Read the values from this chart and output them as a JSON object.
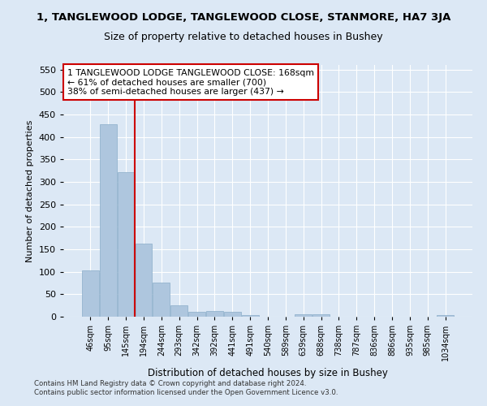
{
  "title": "1, TANGLEWOOD LODGE, TANGLEWOOD CLOSE, STANMORE, HA7 3JA",
  "subtitle": "Size of property relative to detached houses in Bushey",
  "xlabel": "Distribution of detached houses by size in Bushey",
  "ylabel": "Number of detached properties",
  "footer_line1": "Contains HM Land Registry data © Crown copyright and database right 2024.",
  "footer_line2": "Contains public sector information licensed under the Open Government Licence v3.0.",
  "categories": [
    "46sqm",
    "95sqm",
    "145sqm",
    "194sqm",
    "244sqm",
    "293sqm",
    "342sqm",
    "392sqm",
    "441sqm",
    "491sqm",
    "540sqm",
    "589sqm",
    "639sqm",
    "688sqm",
    "738sqm",
    "787sqm",
    "836sqm",
    "886sqm",
    "935sqm",
    "985sqm",
    "1034sqm"
  ],
  "values": [
    103,
    428,
    322,
    163,
    76,
    26,
    11,
    12,
    10,
    3,
    0,
    0,
    6,
    6,
    0,
    0,
    0,
    0,
    0,
    0,
    3
  ],
  "bar_color": "#aec6de",
  "bar_edge_color": "#8aadc8",
  "vline_x": 2.5,
  "vline_color": "#cc0000",
  "annotation_text": "1 TANGLEWOOD LODGE TANGLEWOOD CLOSE: 168sqm\n← 61% of detached houses are smaller (700)\n38% of semi-detached houses are larger (437) →",
  "annotation_box_color": "#ffffff",
  "annotation_box_edge_color": "#cc0000",
  "ylim": [
    0,
    560
  ],
  "yticks": [
    0,
    50,
    100,
    150,
    200,
    250,
    300,
    350,
    400,
    450,
    500,
    550
  ],
  "bg_color": "#dce8f5",
  "grid_color": "#ffffff",
  "title_fontsize": 9.5,
  "subtitle_fontsize": 9
}
